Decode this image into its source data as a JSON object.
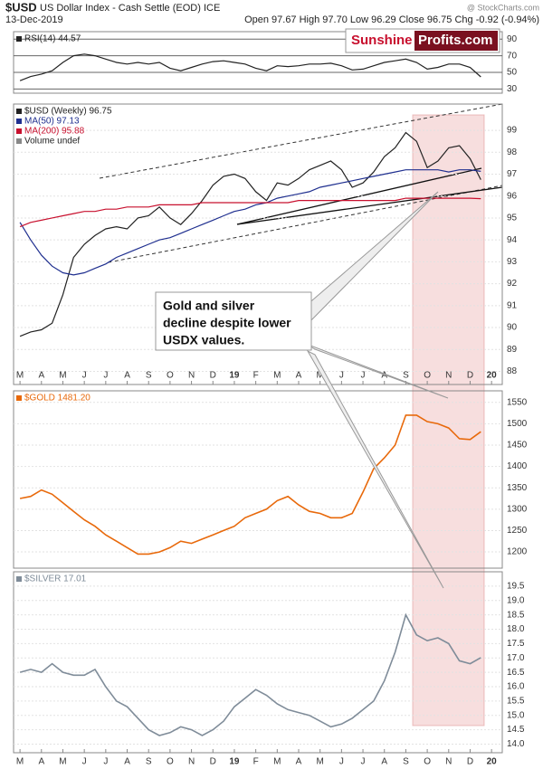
{
  "header": {
    "symbol": "$USD",
    "description": "US Dollar Index - Cash Settle (EOD) ICE",
    "date": "13-Dec-2019",
    "quote": "Open 97.67 High 97.70 Low 96.29 Close 96.75 Chg -0.92 (-0.94%)",
    "watermark": "@ StockCharts.com"
  },
  "logo": {
    "part1": "Sunshine",
    "part2": "Profits.com"
  },
  "annotation": {
    "lines": [
      "Gold and silver",
      "decline despite lower",
      "USDX values."
    ]
  },
  "chart_data": [
    {
      "type": "line",
      "x": [
        0,
        0.5,
        1,
        1.5,
        2,
        2.5,
        3,
        3.5,
        4,
        4.5,
        5,
        5.5,
        6,
        6.5,
        7,
        7.5,
        8,
        8.5,
        9,
        9.5,
        10,
        10.5,
        11,
        11.5,
        12,
        12.5,
        13,
        13.5,
        14,
        14.5,
        15,
        15.5,
        16,
        16.5,
        17,
        17.5,
        18,
        18.5,
        19,
        19.5,
        20,
        20.5,
        21,
        21.5
      ],
      "xlim": [
        -0.3,
        22.5
      ],
      "ylim": [
        25,
        99
      ],
      "yticks": [
        30,
        50,
        70,
        90
      ],
      "grid": true,
      "series": [
        {
          "name": "RSI(14) 44.57",
          "color": "#222222",
          "values": [
            40,
            45,
            48,
            52,
            62,
            70,
            72,
            70,
            66,
            62,
            60,
            62,
            60,
            62,
            55,
            52,
            56,
            60,
            63,
            64,
            62,
            60,
            55,
            52,
            58,
            57,
            58,
            60,
            60,
            61,
            58,
            53,
            54,
            58,
            62,
            64,
            66,
            62,
            54,
            56,
            60,
            60,
            56,
            44.57
          ]
        }
      ]
    },
    {
      "type": "line",
      "x": [
        0,
        0.5,
        1,
        1.5,
        2,
        2.5,
        3,
        3.5,
        4,
        4.5,
        5,
        5.5,
        6,
        6.5,
        7,
        7.5,
        8,
        8.5,
        9,
        9.5,
        10,
        10.5,
        11,
        11.5,
        12,
        12.5,
        13,
        13.5,
        14,
        14.5,
        15,
        15.5,
        16,
        16.5,
        17,
        17.5,
        18,
        18.5,
        19,
        19.5,
        20,
        20.5,
        21,
        21.5
      ],
      "xlim": [
        -0.3,
        22.5
      ],
      "ylim": [
        87.4,
        100.2
      ],
      "yticks": [
        88,
        89,
        90,
        91,
        92,
        93,
        94,
        95,
        96,
        97,
        98,
        99
      ],
      "xticks": [
        {
          "value": 0,
          "label": "M"
        },
        {
          "value": 1,
          "label": "A"
        },
        {
          "value": 2,
          "label": "M"
        },
        {
          "value": 3,
          "label": "J"
        },
        {
          "value": 4,
          "label": "J"
        },
        {
          "value": 5,
          "label": "A"
        },
        {
          "value": 6,
          "label": "S"
        },
        {
          "value": 7,
          "label": "O"
        },
        {
          "value": 8,
          "label": "N"
        },
        {
          "value": 9,
          "label": "D"
        },
        {
          "value": 10,
          "label": "19"
        },
        {
          "value": 11,
          "label": "F"
        },
        {
          "value": 12,
          "label": "M"
        },
        {
          "value": 13,
          "label": "A"
        },
        {
          "value": 14,
          "label": "M"
        },
        {
          "value": 15,
          "label": "J"
        },
        {
          "value": 16,
          "label": "J"
        },
        {
          "value": 17,
          "label": "A"
        },
        {
          "value": 18,
          "label": "S"
        },
        {
          "value": 19,
          "label": "O"
        },
        {
          "value": 20,
          "label": "N"
        },
        {
          "value": 21,
          "label": "D"
        },
        {
          "value": 22,
          "label": "20"
        }
      ],
      "grid": true,
      "note": "Volume undef",
      "series": [
        {
          "name": "$USD (Weekly) 96.75",
          "color": "#222222",
          "values": [
            89.6,
            89.8,
            89.9,
            90.2,
            91.5,
            93.2,
            93.8,
            94.2,
            94.5,
            94.6,
            94.5,
            95.0,
            95.1,
            95.5,
            95.0,
            94.7,
            95.2,
            95.8,
            96.5,
            96.9,
            97.0,
            96.8,
            96.2,
            95.8,
            96.6,
            96.5,
            96.8,
            97.2,
            97.4,
            97.6,
            97.2,
            96.4,
            96.6,
            97.1,
            97.8,
            98.2,
            98.9,
            98.5,
            97.3,
            97.6,
            98.2,
            98.3,
            97.7,
            96.75
          ]
        },
        {
          "name": "MA(50) 97.13",
          "color": "#1f2f8f",
          "values": [
            94.8,
            94.0,
            93.3,
            92.8,
            92.5,
            92.4,
            92.5,
            92.7,
            92.9,
            93.2,
            93.4,
            93.6,
            93.8,
            94.0,
            94.1,
            94.3,
            94.5,
            94.7,
            94.9,
            95.1,
            95.3,
            95.4,
            95.6,
            95.7,
            95.9,
            96.0,
            96.1,
            96.2,
            96.4,
            96.5,
            96.6,
            96.7,
            96.8,
            96.9,
            97.0,
            97.1,
            97.2,
            97.2,
            97.2,
            97.2,
            97.1,
            97.2,
            97.2,
            97.13
          ]
        },
        {
          "name": "MA(200) 95.88",
          "color": "#c8102e",
          "values": [
            94.6,
            94.8,
            94.9,
            95.0,
            95.1,
            95.2,
            95.3,
            95.3,
            95.4,
            95.4,
            95.5,
            95.5,
            95.5,
            95.6,
            95.6,
            95.6,
            95.6,
            95.7,
            95.7,
            95.7,
            95.7,
            95.7,
            95.7,
            95.7,
            95.7,
            95.7,
            95.8,
            95.8,
            95.8,
            95.8,
            95.8,
            95.8,
            95.8,
            95.8,
            95.8,
            95.8,
            95.9,
            95.9,
            95.9,
            95.9,
            95.9,
            95.9,
            95.9,
            95.88
          ]
        }
      ]
    },
    {
      "type": "line",
      "x": [
        0,
        0.5,
        1,
        1.5,
        2,
        2.5,
        3,
        3.5,
        4,
        4.5,
        5,
        5.5,
        6,
        6.5,
        7,
        7.5,
        8,
        8.5,
        9,
        9.5,
        10,
        10.5,
        11,
        11.5,
        12,
        12.5,
        13,
        13.5,
        14,
        14.5,
        15,
        15.5,
        16,
        16.5,
        17,
        17.5,
        18,
        18.5,
        19,
        19.5,
        20,
        20.5,
        21,
        21.5
      ],
      "xlim": [
        -0.3,
        22.5
      ],
      "ylim": [
        1162,
        1577
      ],
      "yticks": [
        1200,
        1250,
        1300,
        1350,
        1400,
        1450,
        1500,
        1550
      ],
      "grid": true,
      "series": [
        {
          "name": "$GOLD 1481.20",
          "color": "#e8690b",
          "values": [
            1325,
            1330,
            1345,
            1335,
            1315,
            1295,
            1275,
            1260,
            1240,
            1225,
            1210,
            1195,
            1195,
            1200,
            1210,
            1225,
            1220,
            1230,
            1240,
            1250,
            1260,
            1280,
            1290,
            1300,
            1320,
            1330,
            1310,
            1295,
            1290,
            1280,
            1280,
            1290,
            1340,
            1395,
            1420,
            1450,
            1520,
            1520,
            1505,
            1500,
            1490,
            1465,
            1463,
            1481.2
          ]
        }
      ]
    },
    {
      "type": "line",
      "x": [
        0,
        0.5,
        1,
        1.5,
        2,
        2.5,
        3,
        3.5,
        4,
        4.5,
        5,
        5.5,
        6,
        6.5,
        7,
        7.5,
        8,
        8.5,
        9,
        9.5,
        10,
        10.5,
        11,
        11.5,
        12,
        12.5,
        13,
        13.5,
        14,
        14.5,
        15,
        15.5,
        16,
        16.5,
        17,
        17.5,
        18,
        18.5,
        19,
        19.5,
        20,
        20.5,
        21,
        21.5
      ],
      "xlim": [
        -0.3,
        22.5
      ],
      "ylim": [
        13.7,
        20.0
      ],
      "yticks": [
        {
          "value": 14,
          "label": "14.0"
        },
        14.5,
        {
          "value": 15,
          "label": "15.0"
        },
        15.5,
        {
          "value": 16,
          "label": "16.0"
        },
        16.5,
        {
          "value": 17,
          "label": "17.0"
        },
        17.5,
        {
          "value": 18,
          "label": "18.0"
        },
        18.5,
        {
          "value": 19,
          "label": "19.0"
        },
        19.5
      ],
      "xticks": [
        {
          "value": 0,
          "label": "M"
        },
        {
          "value": 1,
          "label": "A"
        },
        {
          "value": 2,
          "label": "M"
        },
        {
          "value": 3,
          "label": "J"
        },
        {
          "value": 4,
          "label": "J"
        },
        {
          "value": 5,
          "label": "A"
        },
        {
          "value": 6,
          "label": "S"
        },
        {
          "value": 7,
          "label": "O"
        },
        {
          "value": 8,
          "label": "N"
        },
        {
          "value": 9,
          "label": "D"
        },
        {
          "value": 10,
          "label": "19"
        },
        {
          "value": 11,
          "label": "F"
        },
        {
          "value": 12,
          "label": "M"
        },
        {
          "value": 13,
          "label": "A"
        },
        {
          "value": 14,
          "label": "M"
        },
        {
          "value": 15,
          "label": "J"
        },
        {
          "value": 16,
          "label": "J"
        },
        {
          "value": 17,
          "label": "A"
        },
        {
          "value": 18,
          "label": "S"
        },
        {
          "value": 19,
          "label": "O"
        },
        {
          "value": 20,
          "label": "N"
        },
        {
          "value": 21,
          "label": "D"
        },
        {
          "value": 22,
          "label": "20"
        }
      ],
      "grid": true,
      "series": [
        {
          "name": "$SILVER 17.01",
          "color": "#7f8c99",
          "values": [
            16.5,
            16.6,
            16.5,
            16.8,
            16.5,
            16.4,
            16.4,
            16.6,
            16.0,
            15.5,
            15.3,
            14.9,
            14.5,
            14.3,
            14.4,
            14.6,
            14.5,
            14.3,
            14.5,
            14.8,
            15.3,
            15.6,
            15.9,
            15.7,
            15.4,
            15.2,
            15.1,
            15.0,
            14.8,
            14.6,
            14.7,
            14.9,
            15.2,
            15.5,
            16.2,
            17.2,
            18.5,
            17.8,
            17.6,
            17.7,
            17.5,
            16.9,
            16.8,
            17.01
          ]
        }
      ]
    }
  ]
}
